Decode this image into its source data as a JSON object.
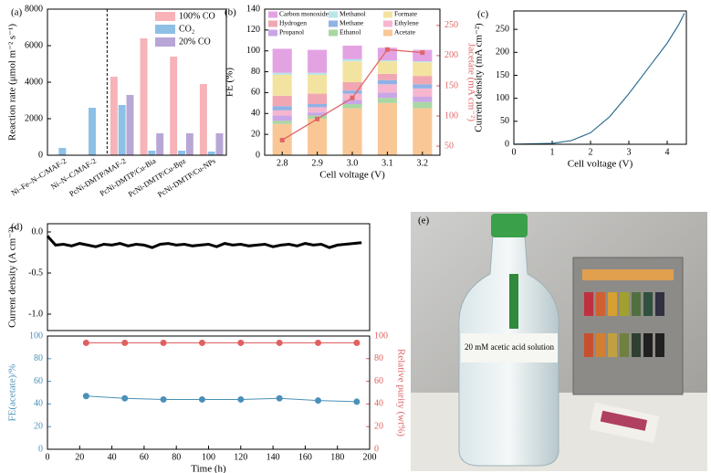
{
  "chart_data": [
    {
      "type": "bar",
      "panel_label": "(a)",
      "ylabel": "Reaction rate (μmol m⁻² s⁻¹)",
      "categories": [
        "Ni–Fe–N–C/MAF-2",
        "Ni–N–C/MAF-2",
        "PcNi-DMTP/MAF-2",
        "PcNi-DMTP/Cu-Bia",
        "PcNi-DMTP/Cu-Bpz",
        "PcNi-DMTP/Cu-NPs"
      ],
      "series": [
        {
          "name": "100% CO",
          "color": "#f7b3b8",
          "values": [
            null,
            null,
            4300,
            6400,
            5400,
            3900
          ]
        },
        {
          "name": "CO₂",
          "color": "#8ec0e6",
          "values": [
            400,
            2600,
            2750,
            250,
            250,
            200
          ]
        },
        {
          "name": "20% CO",
          "color": "#b7a6d6",
          "values": [
            null,
            null,
            3300,
            1200,
            1200,
            1200
          ]
        }
      ],
      "ylim": [
        0,
        8000
      ],
      "yticks": [
        0,
        2000,
        4000,
        6000,
        8000
      ],
      "legend": "upper right"
    },
    {
      "type": "stacked-bar",
      "panel_label": "(b)",
      "xlabel": "Cell voltage (V)",
      "ylabel": "FE (%)",
      "y2label": "Jacetate (mA cm⁻²)",
      "categories": [
        "2.8",
        "2.9",
        "3.0",
        "3.1",
        "3.2"
      ],
      "series": [
        {
          "name": "Acetate",
          "color": "#f9c796",
          "values": [
            30,
            35,
            45,
            50,
            45
          ]
        },
        {
          "name": "Ethanol",
          "color": "#a9d7a3",
          "values": [
            3,
            3,
            4,
            5,
            6
          ]
        },
        {
          "name": "Propanol",
          "color": "#c9a6e6",
          "values": [
            5,
            3,
            4,
            5,
            5
          ]
        },
        {
          "name": "Ethylene",
          "color": "#f6b6d0",
          "values": [
            5,
            5,
            6,
            8,
            8
          ]
        },
        {
          "name": "Methane",
          "color": "#8fb2e6",
          "values": [
            4,
            3,
            3,
            4,
            4
          ]
        },
        {
          "name": "Hydrogen",
          "color": "#f1a7b3",
          "values": [
            10,
            10,
            8,
            6,
            8
          ]
        },
        {
          "name": "Formate",
          "color": "#f3e3a0",
          "values": [
            20,
            18,
            20,
            12,
            13
          ]
        },
        {
          "name": "Methanol",
          "color": "#b9e6e8",
          "values": [
            2,
            2,
            2,
            1,
            1
          ]
        },
        {
          "name": "Carbon monoxide",
          "color": "#e3a3e3",
          "values": [
            23,
            22,
            13,
            12,
            11
          ]
        }
      ],
      "y2_series": {
        "color": "#e06666",
        "values": [
          60,
          95,
          130,
          210,
          205
        ]
      },
      "ylim": [
        0,
        140
      ],
      "yticks": [
        0,
        20,
        40,
        60,
        80,
        100,
        120,
        140
      ],
      "y2lim": [
        35,
        277
      ],
      "y2ticks": [
        50,
        100,
        150,
        200,
        250
      ]
    },
    {
      "type": "line",
      "panel_label": "(c)",
      "xlabel": "Cell voltage (V)",
      "ylabel": "Current density (mA cm⁻²)",
      "x": [
        0,
        1,
        1.5,
        2,
        2.5,
        3,
        3.5,
        4,
        4.3,
        4.45
      ],
      "values": [
        0,
        2,
        8,
        25,
        60,
        110,
        165,
        220,
        260,
        285
      ],
      "color": "#2f6f8f",
      "xlim": [
        0,
        4.5
      ],
      "xticks": [
        0,
        1,
        2,
        3,
        4
      ],
      "ylim": [
        0,
        290
      ],
      "yticks": [
        0,
        50,
        100,
        150,
        200,
        250
      ]
    },
    {
      "type": "line",
      "panel_label": "(d)",
      "ylabel": "Current density (A cm⁻²)",
      "x": [
        0,
        5,
        10,
        15,
        20,
        25,
        30,
        35,
        40,
        45,
        50,
        55,
        60,
        65,
        70,
        75,
        80,
        85,
        90,
        95,
        100,
        105,
        110,
        115,
        120,
        125,
        130,
        135,
        140,
        145,
        150,
        155,
        160,
        165,
        170,
        175,
        180,
        185,
        190,
        195
      ],
      "values": [
        -0.05,
        -0.16,
        -0.15,
        -0.17,
        -0.14,
        -0.16,
        -0.18,
        -0.15,
        -0.16,
        -0.14,
        -0.17,
        -0.15,
        -0.16,
        -0.19,
        -0.15,
        -0.14,
        -0.16,
        -0.15,
        -0.17,
        -0.16,
        -0.15,
        -0.18,
        -0.14,
        -0.16,
        -0.15,
        -0.17,
        -0.16,
        -0.15,
        -0.18,
        -0.16,
        -0.15,
        -0.17,
        -0.14,
        -0.16,
        -0.15,
        -0.19,
        -0.16,
        -0.15,
        -0.14,
        -0.13
      ],
      "color": "#000000",
      "xlim": [
        0,
        200
      ],
      "ylim": [
        -1.2,
        0.1
      ],
      "yticks": [
        {
          "value": 0,
          "label": "0.0"
        },
        -0.5,
        {
          "value": -1,
          "label": "-1.0"
        }
      ]
    },
    {
      "type": "scatter-line",
      "xlabel": "Time (h)",
      "ylabel": "FE(acetate)/%",
      "y2label": "Relative purity (wt%)",
      "x": [
        24,
        48,
        72,
        96,
        120,
        144,
        168,
        192
      ],
      "series": [
        {
          "color": "#4a90b8",
          "values": [
            47,
            45,
            44,
            44,
            44,
            45,
            43,
            42
          ]
        },
        {
          "color": "#e06060",
          "axis": "y2",
          "values": [
            94,
            94,
            94,
            94,
            94,
            94,
            94,
            94
          ]
        }
      ],
      "xlim": [
        0,
        200
      ],
      "xticks": [
        0,
        20,
        40,
        60,
        80,
        100,
        120,
        140,
        160,
        180,
        200
      ],
      "ylim": [
        0,
        100
      ],
      "yticks": [
        0,
        20,
        40,
        60,
        80,
        100
      ],
      "y2lim": [
        0,
        100
      ],
      "y2ticks": [
        0,
        20,
        40,
        60,
        80,
        100
      ]
    }
  ],
  "photo": {
    "panel_label": "(e)",
    "bottle_label": "20 mM acetic acid solution"
  }
}
